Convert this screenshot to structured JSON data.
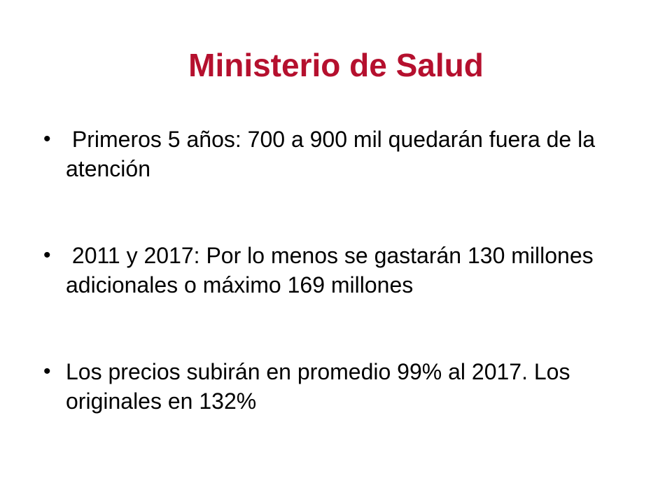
{
  "slide": {
    "title": "Ministerio de Salud",
    "bullets": [
      " Primeros 5 años: 700 a 900 mil quedarán fuera de la atención",
      " 2011 y 2017: Por lo menos se gastarán 130 millones adicionales o máximo 169 millones",
      "Los precios subirán en promedio 99% al 2017. Los originales en 132%"
    ],
    "colors": {
      "title": "#b5102e",
      "text": "#000000",
      "background": "#ffffff"
    }
  }
}
